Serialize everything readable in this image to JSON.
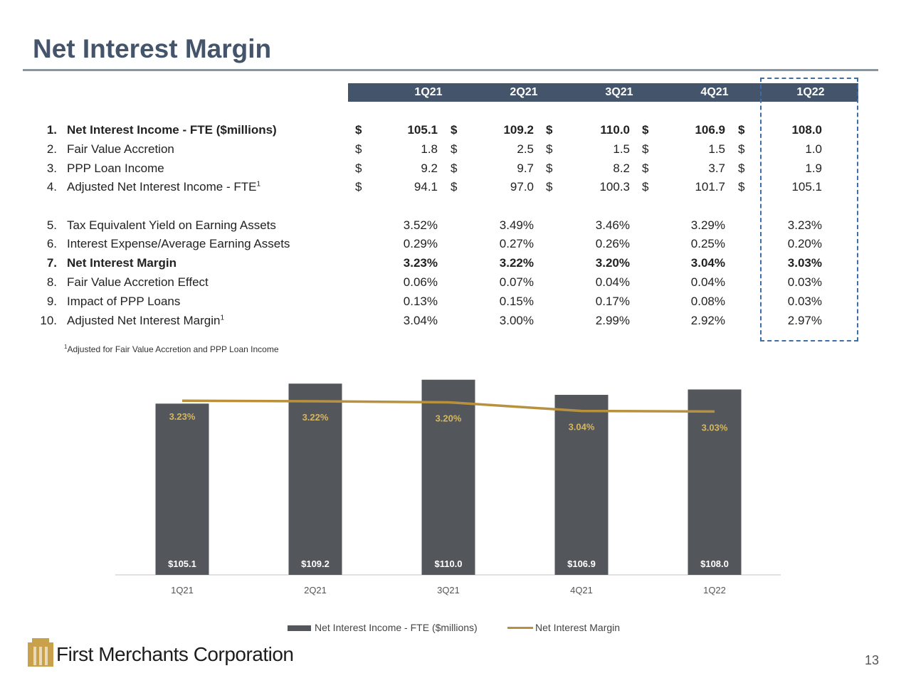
{
  "slide": {
    "title": "Net Interest Margin",
    "page_number": "13",
    "logo_text": "First Merchants Corporation",
    "footnote_mark": "1",
    "footnote_text": "Adjusted for Fair Value Accretion and PPP Loan Income"
  },
  "table": {
    "columns": [
      "1Q21",
      "2Q21",
      "3Q21",
      "4Q21",
      "1Q22"
    ],
    "dollar_sign": "$",
    "rows": [
      {
        "num": "1.",
        "label": "Net Interest Income - FTE ($millions)",
        "sup": "",
        "bold": true,
        "dollar": true,
        "values": [
          "105.1",
          "109.2",
          "110.0",
          "106.9",
          "108.0"
        ]
      },
      {
        "num": "2.",
        "label": "Fair Value Accretion",
        "sup": "",
        "bold": false,
        "dollar": true,
        "values": [
          "1.8",
          "2.5",
          "1.5",
          "1.5",
          "1.0"
        ]
      },
      {
        "num": "3.",
        "label": "PPP Loan Income",
        "sup": "",
        "bold": false,
        "dollar": true,
        "values": [
          "9.2",
          "9.7",
          "8.2",
          "3.7",
          "1.9"
        ]
      },
      {
        "num": "4.",
        "label": "Adjusted Net Interest Income - FTE",
        "sup": "1",
        "bold": false,
        "dollar": true,
        "values": [
          "94.1",
          "97.0",
          "100.3",
          "101.7",
          "105.1"
        ]
      },
      {
        "num": "5.",
        "label": "Tax Equivalent Yield on Earning Assets",
        "sup": "",
        "bold": false,
        "dollar": false,
        "values": [
          "3.52%",
          "3.49%",
          "3.46%",
          "3.29%",
          "3.23%"
        ]
      },
      {
        "num": "6.",
        "label": "Interest Expense/Average Earning Assets",
        "sup": "",
        "bold": false,
        "dollar": false,
        "values": [
          "0.29%",
          "0.27%",
          "0.26%",
          "0.25%",
          "0.20%"
        ]
      },
      {
        "num": "7.",
        "label": "Net Interest Margin",
        "sup": "",
        "bold": true,
        "dollar": false,
        "values": [
          "3.23%",
          "3.22%",
          "3.20%",
          "3.04%",
          "3.03%"
        ]
      },
      {
        "num": "8.",
        "label": "Fair Value Accretion Effect",
        "sup": "",
        "bold": false,
        "dollar": false,
        "values": [
          "0.06%",
          "0.07%",
          "0.04%",
          "0.04%",
          "0.03%"
        ]
      },
      {
        "num": "9.",
        "label": "Impact of PPP Loans",
        "sup": "",
        "bold": false,
        "dollar": false,
        "values": [
          "0.13%",
          "0.15%",
          "0.17%",
          "0.08%",
          "0.03%"
        ]
      },
      {
        "num": "10.",
        "label": "Adjusted Net Interest Margin",
        "sup": "1",
        "bold": false,
        "dollar": false,
        "values": [
          "3.04%",
          "3.00%",
          "2.99%",
          "2.92%",
          "2.97%"
        ]
      }
    ]
  },
  "chart_data": {
    "type": "bar",
    "categories": [
      "1Q21",
      "2Q21",
      "3Q21",
      "4Q21",
      "1Q22"
    ],
    "series": [
      {
        "name": "Net Interest Income - FTE ($millions)",
        "kind": "bar",
        "values": [
          105.1,
          109.2,
          110.0,
          106.9,
          108.0
        ],
        "labels": [
          "$105.1",
          "$109.2",
          "$110.0",
          "$106.9",
          "$108.0"
        ]
      },
      {
        "name": "Net Interest Margin",
        "kind": "line",
        "values": [
          3.23,
          3.22,
          3.2,
          3.04,
          3.03
        ],
        "labels": [
          "3.23%",
          "3.22%",
          "3.20%",
          "3.04%",
          "3.03%"
        ]
      }
    ],
    "bar_ylim": [
      70,
      112
    ],
    "line_ylim": [
      0,
      3.8
    ],
    "legend": "bottom",
    "grid": false,
    "colors": {
      "bar": "#53565b",
      "line": "#b8913f",
      "bar_label": "#ffffff",
      "line_label": "#d6b65e"
    }
  },
  "colors": {
    "title": "#44546a",
    "header_bg": "#44546a",
    "highlight_border": "#3d6ea8",
    "logo_gold": "#c9a14a"
  }
}
